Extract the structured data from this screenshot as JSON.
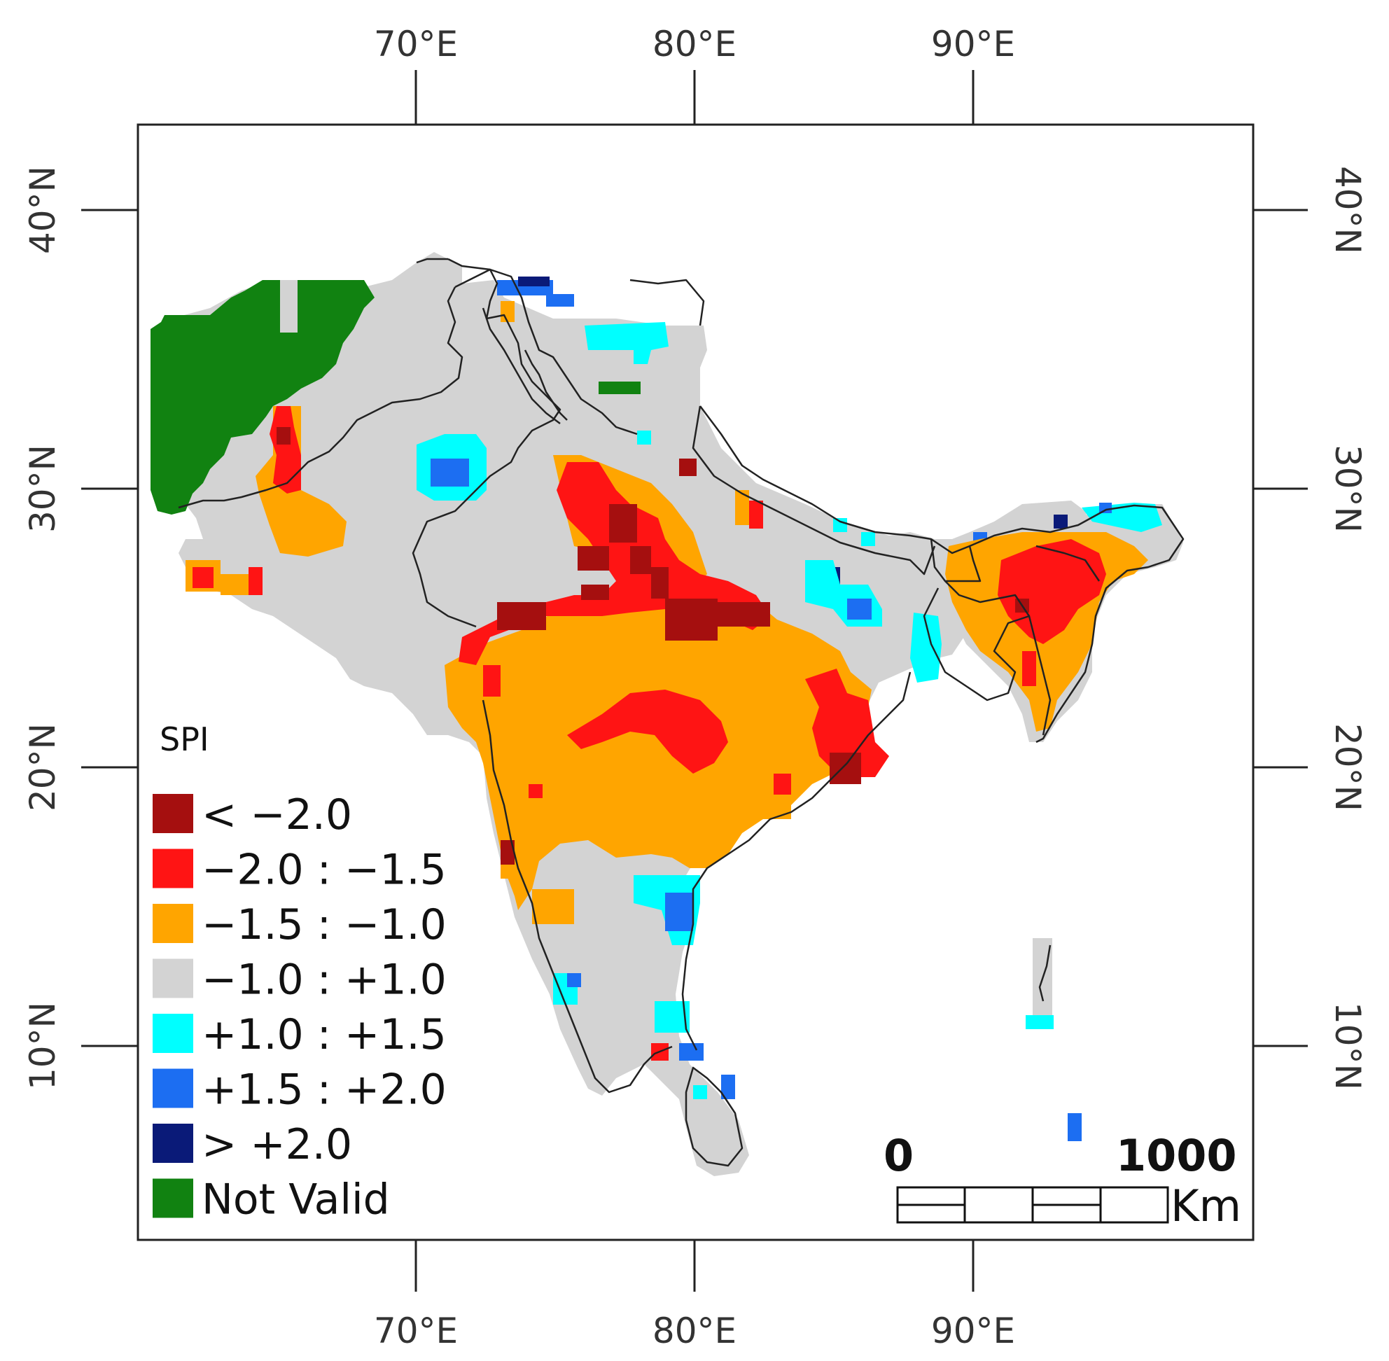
{
  "map": {
    "lon_ticks": [
      "70°E",
      "80°E",
      "90°E"
    ],
    "lat_ticks": [
      "40°N",
      "30°N",
      "20°N",
      "10°N"
    ],
    "legend": {
      "title": "SPI",
      "items": [
        {
          "label": "< −2.0",
          "color": "#a50f0f"
        },
        {
          "label": "−2.0 : −1.5",
          "color": "#ff1414"
        },
        {
          "label": "−1.5 : −1.0",
          "color": "#ffa500"
        },
        {
          "label": "−1.0 : +1.0",
          "color": "#d3d3d3"
        },
        {
          "label": "+1.0 : +1.5",
          "color": "#00ffff"
        },
        {
          "label": "+1.5 : +2.0",
          "color": "#1c6ef2"
        },
        {
          "label": "> +2.0",
          "color": "#0a1a78"
        },
        {
          "label": "Not Valid",
          "color": "#118211"
        }
      ]
    },
    "scale_bar": {
      "start_label": "0",
      "end_label": "1000",
      "unit": "Km"
    }
  }
}
